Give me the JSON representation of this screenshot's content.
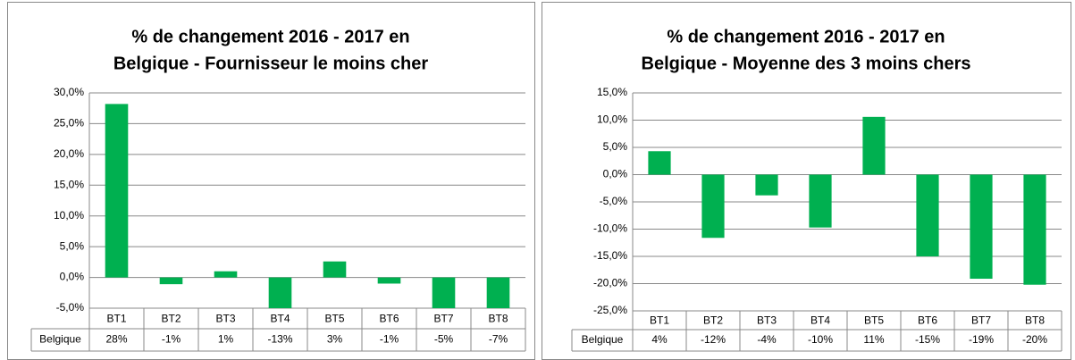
{
  "chart_data": [
    {
      "type": "bar",
      "title": [
        "% de changement 2016 - 2017 en",
        "Belgique - Fournisseur le moins cher"
      ],
      "categories": [
        "BT1",
        "BT2",
        "BT3",
        "BT4",
        "BT5",
        "BT6",
        "BT7",
        "BT8"
      ],
      "series": [
        {
          "name": "Belgique",
          "color": "#00b050",
          "values": [
            28.2,
            -1.1,
            1.0,
            -13,
            2.6,
            -1.0,
            -5,
            -7
          ],
          "value_labels": [
            "28%",
            "-1%",
            "1%",
            "-13%",
            "3%",
            "-1%",
            "-5%",
            "-7%"
          ]
        }
      ],
      "ylim": [
        -5,
        30
      ],
      "yticks": [
        {
          "value": -5,
          "label": "-5,0%"
        },
        {
          "value": 0,
          "label": "0,0%"
        },
        {
          "value": 5,
          "label": "5,0%"
        },
        {
          "value": 10,
          "label": "10,0%"
        },
        {
          "value": 15,
          "label": "15,0%"
        },
        {
          "value": 20,
          "label": "20,0%"
        },
        {
          "value": 25,
          "label": "25,0%"
        },
        {
          "value": 30,
          "label": "30,0%"
        }
      ],
      "grid": true
    },
    {
      "type": "bar",
      "title": [
        "% de changement 2016 - 2017 en",
        "Belgique - Moyenne des 3 moins chers"
      ],
      "categories": [
        "BT1",
        "BT2",
        "BT3",
        "BT4",
        "BT5",
        "BT6",
        "BT7",
        "BT8"
      ],
      "series": [
        {
          "name": "Belgique",
          "color": "#00b050",
          "values": [
            4.3,
            -11.6,
            -3.8,
            -9.7,
            10.6,
            -15.0,
            -19.1,
            -20.2
          ],
          "value_labels": [
            "4%",
            "-12%",
            "-4%",
            "-10%",
            "11%",
            "-15%",
            "-19%",
            "-20%"
          ]
        }
      ],
      "ylim": [
        -25,
        15
      ],
      "yticks": [
        {
          "value": -25,
          "label": "-25,0%"
        },
        {
          "value": -20,
          "label": "-20,0%"
        },
        {
          "value": -15,
          "label": "-15,0%"
        },
        {
          "value": -10,
          "label": "-10,0%"
        },
        {
          "value": -5,
          "label": "-5,0%"
        },
        {
          "value": 0,
          "label": "0,0%"
        },
        {
          "value": 5,
          "label": "5,0%"
        },
        {
          "value": 10,
          "label": "10,0%"
        },
        {
          "value": 15,
          "label": "15,0%"
        }
      ],
      "grid": true
    }
  ]
}
